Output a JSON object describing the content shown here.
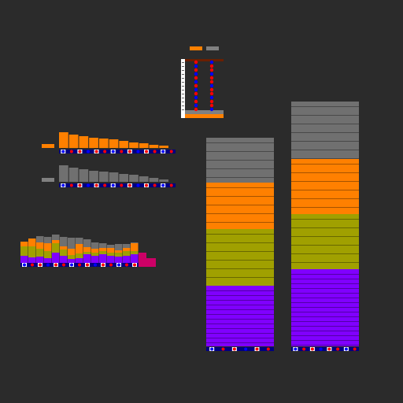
{
  "panels": {
    "orange_bars": [
      20,
      17,
      15,
      13,
      12,
      11,
      9,
      7,
      6,
      4,
      3
    ],
    "gray_bars": [
      21,
      18,
      16,
      14,
      13,
      12,
      10,
      9,
      7,
      5,
      3
    ],
    "small_stack": [
      [
        10,
        12,
        6,
        0
      ],
      [
        8,
        14,
        10,
        0
      ],
      [
        9,
        10,
        8,
        8
      ],
      [
        7,
        9,
        10,
        8
      ],
      [
        14,
        12,
        4,
        7
      ],
      [
        10,
        8,
        4,
        12
      ],
      [
        6,
        5,
        8,
        14
      ],
      [
        7,
        6,
        12,
        8
      ],
      [
        12,
        3,
        6,
        10
      ],
      [
        10,
        4,
        5,
        8
      ],
      [
        12,
        4,
        4,
        6
      ],
      [
        10,
        4,
        6,
        4
      ],
      [
        9,
        5,
        3,
        8
      ],
      [
        10,
        6,
        4,
        5
      ],
      [
        12,
        4,
        10,
        1
      ]
    ],
    "big_columns": [
      {
        "segments": [
          77,
          72,
          59,
          57
        ]
      },
      {
        "segments": [
          98,
          70,
          70,
          73
        ]
      }
    ]
  }
}
